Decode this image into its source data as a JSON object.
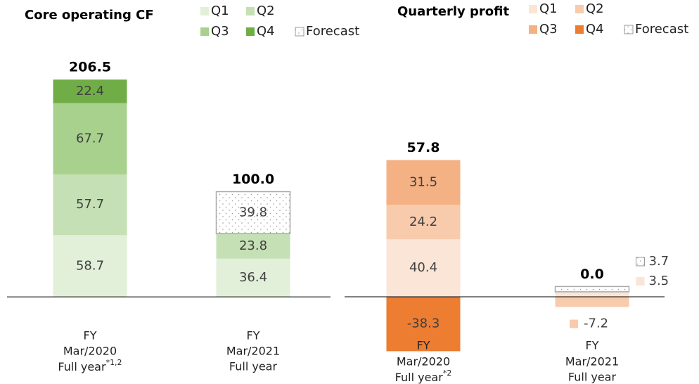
{
  "chart_data": [
    {
      "type": "stacked_bar",
      "title": "Core operating CF",
      "categories": [
        {
          "lines": [
            "FY",
            "Mar/2020",
            "Full year"
          ],
          "note": "*1,2"
        },
        {
          "lines": [
            "FY",
            "Mar/2021",
            "Full year"
          ]
        }
      ],
      "series": [
        {
          "name": "Q1",
          "color": "#e2efd9",
          "values": [
            58.7,
            36.4
          ]
        },
        {
          "name": "Q2",
          "color": "#c5e0b4",
          "values": [
            57.7,
            23.8
          ]
        },
        {
          "name": "Q3",
          "color": "#a9d18e",
          "values": [
            67.7,
            null
          ]
        },
        {
          "name": "Q4",
          "color": "#70ad47",
          "values": [
            22.4,
            null
          ]
        },
        {
          "name": "Forecast",
          "color": "forecast",
          "values": [
            null,
            39.8
          ]
        }
      ],
      "totals": [
        206.5,
        100.0
      ],
      "totals_labels": [
        "206.5",
        "100.0"
      ],
      "ylim": [
        -52,
        242
      ]
    },
    {
      "type": "stacked_bar",
      "title": "Quarterly profit",
      "categories": [
        {
          "lines": [
            "FY",
            "Mar/2020",
            "Full year"
          ],
          "note": "*2"
        },
        {
          "lines": [
            "FY",
            "Mar/2021",
            "Full year"
          ]
        }
      ],
      "series": [
        {
          "name": "Q1",
          "color": "#fbe5d6",
          "values": [
            40.4,
            3.5
          ]
        },
        {
          "name": "Q2",
          "color": "#f8cbad",
          "values": [
            24.2,
            -7.2
          ]
        },
        {
          "name": "Q3",
          "color": "#f4b183",
          "values": [
            31.5,
            null
          ]
        },
        {
          "name": "Q4",
          "color": "#ed7d31",
          "values": [
            -38.3,
            null
          ]
        },
        {
          "name": "Forecast",
          "color": "forecast",
          "values": [
            null,
            3.7
          ]
        }
      ],
      "totals": [
        57.8,
        0.0
      ],
      "totals_labels": [
        "57.8",
        "0.0"
      ],
      "ylim": [
        -38.6,
        179
      ]
    }
  ]
}
